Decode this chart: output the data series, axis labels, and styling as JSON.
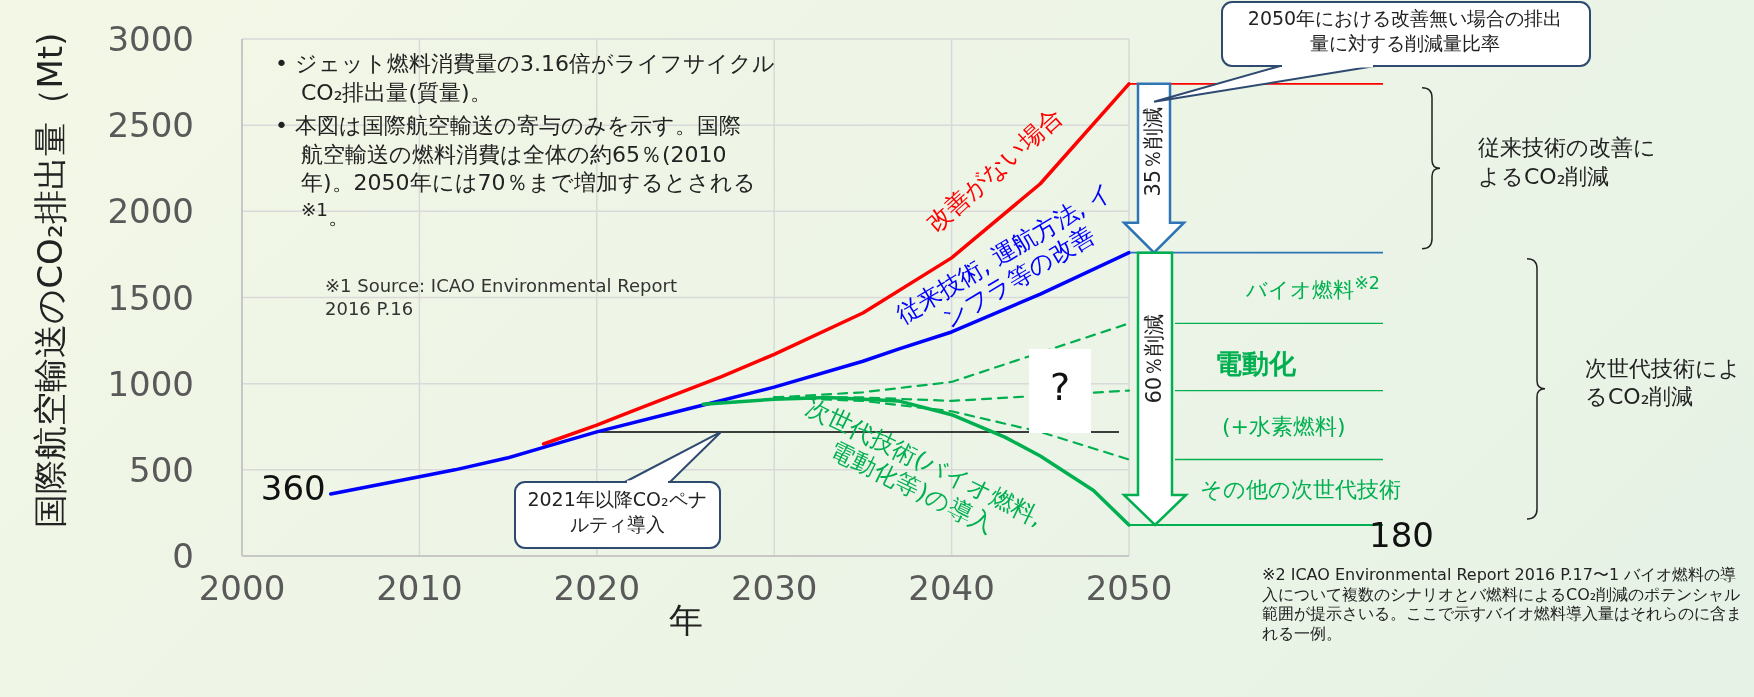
{
  "chart_data": {
    "type": "line",
    "xlabel": "年",
    "ylabel": "国際航空輸送のCO₂排出量（Mt)",
    "xlim": [
      2000,
      2050
    ],
    "ylim": [
      0,
      3000
    ],
    "xticks": [
      2000,
      2010,
      2020,
      2030,
      2040,
      2050
    ],
    "yticks": [
      0,
      500,
      1000,
      1500,
      2000,
      2500,
      3000
    ],
    "grid": true,
    "series": [
      {
        "name": "改善がない場合",
        "color": "#ff0000",
        "x": [
          2017,
          2020,
          2022,
          2024,
          2027,
          2030,
          2035,
          2040,
          2045,
          2050
        ],
        "values": [
          650,
          760,
          840,
          920,
          1040,
          1170,
          1410,
          1730,
          2160,
          2740
        ]
      },
      {
        "name": "従来技術, 運航方法, インフラ等の改善",
        "color": "#0000ff",
        "x": [
          2005,
          2010,
          2012,
          2015,
          2017,
          2020,
          2025,
          2030,
          2035,
          2037,
          2040,
          2045,
          2050
        ],
        "values": [
          360,
          460,
          500,
          570,
          630,
          720,
          850,
          980,
          1130,
          1200,
          1300,
          1520,
          1760
        ]
      },
      {
        "name": "次世代技術(バイオ燃料, 電動化等)の導入",
        "color": "#00b050",
        "x": [
          2026,
          2030,
          2033,
          2037,
          2040,
          2043,
          2045,
          2048,
          2050
        ],
        "values": [
          880,
          910,
          920,
          900,
          820,
          690,
          580,
          380,
          180
        ]
      },
      {
        "color": "#00b050",
        "line_style": "dashed",
        "x": [
          2030,
          2035,
          2040,
          2050
        ],
        "values": [
          920,
          950,
          1010,
          1350
        ]
      },
      {
        "color": "#00b050",
        "line_style": "dashed",
        "x": [
          2030,
          2035,
          2040,
          2050
        ],
        "values": [
          920,
          920,
          900,
          960
        ]
      },
      {
        "color": "#00b050",
        "line_style": "dashed",
        "x": [
          2030,
          2035,
          2040,
          2045,
          2050
        ],
        "values": [
          920,
          900,
          840,
          720,
          560
        ]
      }
    ],
    "ref_lines": [
      {
        "axis": "y",
        "value": 720,
        "label": "2021年以降CO₂ペナルティ導入",
        "color": "#000000"
      }
    ],
    "annotations": [
      "• ジェット燃料消費量の3.16倍がライフサイクルCO₂排出量(質量)。",
      "• 本図は国際航空輸送の寄与のみを示す。国際航空輸送の燃料消費は全体の約65％(2010年)。2050年には70％まで増加するとされる$^{※1}$。",
      "※1 Source: ICAO Environmental Report 2016 P.16",
      {
        "text": "360",
        "x": 2005,
        "y": 360
      },
      {
        "text": "180",
        "x": 2050,
        "y": 180
      },
      "?",
      "2050年における改善無い場合の排出量に対する削減量比率",
      "35％削減",
      "60％削減",
      "バイオ燃料$^{※2}$",
      "電動化",
      "(+水素燃料)",
      "その他の次世代技術",
      "従来技術の改善によるCO₂削減",
      "次世代技術によるCO₂削減",
      "※2  ICAO Environmental Report 2016 P.17〜1 バイオ燃料の導入について複数のシナリオとバ燃料によるCO₂削減のポテンシャル範囲が提示さいる。ここで示すバイオ燃料導入量はそれらのに含まれる一例。"
    ]
  }
}
